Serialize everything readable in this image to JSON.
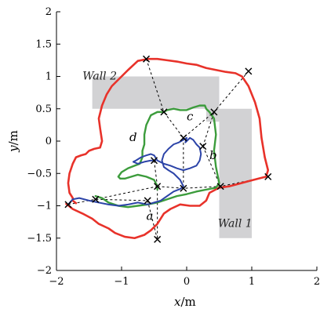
{
  "chart_data": {
    "type": "line",
    "title": "",
    "xlabel": "x",
    "xlabel_unit": "/m",
    "ylabel": "y",
    "ylabel_unit": "/m",
    "xlim": [
      -2,
      2
    ],
    "ylim": [
      -2,
      2
    ],
    "xticks": [
      -2,
      -1,
      0,
      1,
      2
    ],
    "xtick_labels": [
      "−2",
      "−1",
      "0",
      "1",
      "2"
    ],
    "yticks": [
      -2,
      -1.5,
      -1,
      -0.5,
      0,
      0.5,
      1,
      1.5,
      2
    ],
    "ytick_labels": [
      "−2",
      "−1.5",
      "−1",
      "−0.5",
      "0",
      "0.5",
      "1",
      "1.5",
      "2"
    ],
    "grid": false,
    "legend": "none",
    "walls": [
      {
        "label": "Wall 1",
        "rects": [
          {
            "x0": 0.5,
            "x1": 1.0,
            "y0": -1.5,
            "y1": 0.5
          }
        ]
      },
      {
        "label": "Wall 2",
        "rects": [
          {
            "x0": -1.45,
            "x1": 0.5,
            "y0": 0.5,
            "y1": 1.0
          },
          {
            "x0": 0.3,
            "x1": 0.5,
            "y0": 0.3,
            "y1": 0.5
          }
        ]
      }
    ],
    "series": [
      {
        "color": "#e8322a",
        "x": [
          -1.85,
          -1.75,
          -1.6,
          -1.45,
          -1.35,
          -1.2,
          -1.1,
          -0.95,
          -0.8,
          -0.65,
          -0.55,
          -0.45,
          -0.35,
          -0.25,
          -0.1,
          0.05,
          0.2,
          0.3,
          0.35,
          0.5,
          0.65,
          0.8,
          0.95,
          1.1,
          1.22,
          1.25,
          1.2,
          1.15,
          1.12,
          1.05,
          0.95,
          0.85,
          0.75,
          0.6,
          0.45,
          0.3,
          0.15,
          0.0,
          -0.15,
          -0.3,
          -0.45,
          -0.6,
          -0.75,
          -0.9,
          -1.05,
          -1.15,
          -1.23,
          -1.3,
          -1.35,
          -1.33,
          -1.3,
          -1.33,
          -1.42,
          -1.5,
          -1.55,
          -1.62,
          -1.7,
          -1.75,
          -1.8,
          -1.82,
          -1.8,
          -1.75,
          -1.75,
          -1.7
        ],
        "y": [
          -0.97,
          -1.05,
          -1.12,
          -1.2,
          -1.28,
          -1.35,
          -1.42,
          -1.48,
          -1.5,
          -1.45,
          -1.38,
          -1.28,
          -1.12,
          -1.05,
          -0.98,
          -1.0,
          -1.0,
          -0.92,
          -0.8,
          -0.72,
          -0.7,
          -0.66,
          -0.62,
          -0.58,
          -0.55,
          -0.45,
          -0.25,
          0.05,
          0.35,
          0.6,
          0.85,
          1.0,
          1.05,
          1.07,
          1.1,
          1.13,
          1.18,
          1.2,
          1.23,
          1.25,
          1.27,
          1.27,
          1.24,
          1.1,
          0.95,
          0.85,
          0.72,
          0.55,
          0.35,
          0.2,
          0.0,
          -0.1,
          -0.12,
          -0.15,
          -0.2,
          -0.22,
          -0.25,
          -0.35,
          -0.5,
          -0.65,
          -0.8,
          -0.88,
          -0.92,
          -0.96
        ]
      },
      {
        "color": "#3c9c3c",
        "x": [
          -1.4,
          -1.3,
          -1.2,
          -1.05,
          -0.9,
          -0.75,
          -0.6,
          -0.45,
          -0.3,
          -0.15,
          0.0,
          0.15,
          0.3,
          0.45,
          0.5,
          0.45,
          0.42,
          0.45,
          0.42,
          0.35,
          0.3,
          0.28,
          0.25,
          0.2,
          0.1,
          0.0,
          -0.1,
          -0.2,
          -0.3,
          -0.35,
          -0.45,
          -0.55,
          -0.62,
          -0.65,
          -0.65,
          -0.68,
          -0.68,
          -0.72,
          -0.8,
          -0.9,
          -1.0,
          -1.05,
          -1.02,
          -0.95,
          -0.85,
          -0.75,
          -0.62,
          -0.5,
          -0.45,
          -0.45
        ],
        "y": [
          -0.85,
          -0.88,
          -0.95,
          -1.0,
          -1.02,
          -1.0,
          -0.98,
          -0.95,
          -0.9,
          -0.85,
          -0.82,
          -0.78,
          -0.75,
          -0.72,
          -0.65,
          -0.4,
          -0.15,
          0.1,
          0.35,
          0.45,
          0.5,
          0.55,
          0.55,
          0.55,
          0.52,
          0.48,
          0.48,
          0.5,
          0.48,
          0.45,
          0.45,
          0.4,
          0.25,
          0.1,
          -0.05,
          -0.15,
          -0.25,
          -0.35,
          -0.38,
          -0.42,
          -0.48,
          -0.55,
          -0.58,
          -0.58,
          -0.55,
          -0.52,
          -0.55,
          -0.6,
          -0.7,
          -0.75
        ]
      },
      {
        "color": "#2c44a8",
        "x": [
          -1.82,
          -1.75,
          -1.65,
          -1.5,
          -1.35,
          -1.2,
          -1.05,
          -0.9,
          -0.75,
          -0.6,
          -0.5,
          -0.4,
          -0.3,
          -0.2,
          -0.1,
          -0.05,
          -0.1,
          -0.2,
          -0.28,
          -0.35,
          -0.38,
          -0.35,
          -0.28,
          -0.2,
          -0.12,
          -0.05,
          0.0,
          -0.02,
          0.05,
          0.1,
          0.15,
          0.2,
          0.22,
          0.2,
          0.15,
          0.05,
          -0.05,
          -0.15,
          -0.25,
          -0.35,
          -0.45,
          -0.5,
          -0.55,
          -0.62,
          -0.7,
          -0.78,
          -0.82,
          -0.75,
          -0.65,
          -0.55,
          -0.48
        ],
        "y": [
          -0.98,
          -0.9,
          -0.88,
          -0.92,
          -0.95,
          -0.98,
          -1.0,
          -0.98,
          -0.95,
          -0.98,
          -0.95,
          -0.92,
          -0.85,
          -0.78,
          -0.74,
          -0.7,
          -0.6,
          -0.5,
          -0.45,
          -0.4,
          -0.3,
          -0.2,
          -0.12,
          -0.05,
          -0.02,
          0.02,
          0.05,
          -0.02,
          0.05,
          0.02,
          -0.05,
          -0.1,
          -0.2,
          -0.3,
          -0.38,
          -0.42,
          -0.45,
          -0.42,
          -0.38,
          -0.35,
          -0.3,
          -0.22,
          -0.2,
          -0.22,
          -0.25,
          -0.3,
          -0.32,
          -0.35,
          -0.32,
          -0.3,
          -0.3
        ]
      }
    ],
    "markers": [
      {
        "x": -1.82,
        "y": -0.98
      },
      {
        "x": -1.4,
        "y": -0.9
      },
      {
        "x": -0.6,
        "y": -0.92
      },
      {
        "x": -0.45,
        "y": -1.52
      },
      {
        "x": -0.45,
        "y": -0.7
      },
      {
        "x": -0.05,
        "y": -0.73
      },
      {
        "x": 0.52,
        "y": -0.7
      },
      {
        "x": 1.25,
        "y": -0.55
      },
      {
        "x": -0.5,
        "y": -0.3
      },
      {
        "x": -0.05,
        "y": 0.05
      },
      {
        "x": 0.25,
        "y": -0.08
      },
      {
        "x": -0.35,
        "y": 0.45
      },
      {
        "x": 0.42,
        "y": 0.45
      },
      {
        "x": -0.62,
        "y": 1.27
      },
      {
        "x": 0.95,
        "y": 1.08
      }
    ],
    "dashed_links": [
      [
        {
          "x": -1.82,
          "y": -0.98
        },
        {
          "x": -1.4,
          "y": -0.9
        },
        {
          "x": -0.6,
          "y": -0.92
        }
      ],
      [
        {
          "x": -1.4,
          "y": -0.9
        },
        {
          "x": -0.45,
          "y": -0.7
        }
      ],
      [
        {
          "x": -0.6,
          "y": -0.92
        },
        {
          "x": -0.45,
          "y": -1.52
        }
      ],
      [
        {
          "x": -0.5,
          "y": -0.3
        },
        {
          "x": -0.45,
          "y": -0.7
        },
        {
          "x": -0.45,
          "y": -1.52
        }
      ],
      [
        {
          "x": -0.45,
          "y": -0.7
        },
        {
          "x": -0.05,
          "y": -0.73
        },
        {
          "x": 0.52,
          "y": -0.7
        },
        {
          "x": 1.25,
          "y": -0.55
        }
      ],
      [
        {
          "x": -0.05,
          "y": 0.05
        },
        {
          "x": -0.05,
          "y": -0.73
        }
      ],
      [
        {
          "x": 0.25,
          "y": -0.08
        },
        {
          "x": 0.52,
          "y": -0.7
        }
      ],
      [
        {
          "x": 0.25,
          "y": -0.08
        },
        {
          "x": 0.42,
          "y": 0.45
        }
      ],
      [
        {
          "x": -0.62,
          "y": 1.27
        },
        {
          "x": -0.35,
          "y": 0.45
        },
        {
          "x": -0.05,
          "y": 0.05
        }
      ],
      [
        {
          "x": 0.95,
          "y": 1.08
        },
        {
          "x": 0.42,
          "y": 0.45
        },
        {
          "x": -0.05,
          "y": 0.05
        }
      ]
    ],
    "annotations": [
      {
        "text": "a",
        "x": -0.62,
        "y": -1.22
      },
      {
        "text": "b",
        "x": 0.35,
        "y": -0.28
      },
      {
        "text": "c",
        "x": 0.0,
        "y": 0.32
      },
      {
        "text": "d",
        "x": -0.88,
        "y": 0.0
      }
    ],
    "wall_labels": [
      {
        "text": "Wall 1",
        "x": 0.48,
        "y": -1.33
      },
      {
        "text": "Wall 2",
        "x": -1.6,
        "y": 0.95
      }
    ]
  }
}
